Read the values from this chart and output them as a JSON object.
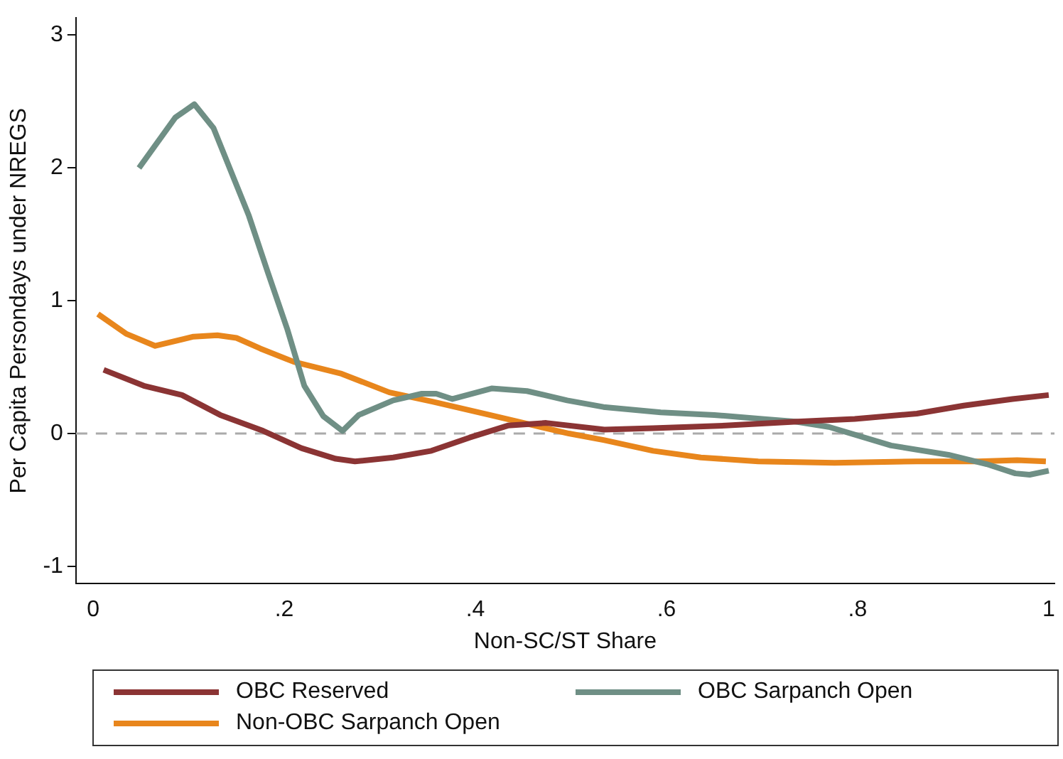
{
  "chart_data": {
    "type": "line",
    "xlabel": "Non-SC/ST Share",
    "ylabel": "Per Capita Persondays under NREGS",
    "xlim": [
      -0.018,
      1.006
    ],
    "ylim": [
      -1.13,
      3.13
    ],
    "xticks": [
      0,
      {
        "value": 0.2,
        "label": ".2"
      },
      {
        "value": 0.4,
        "label": ".4"
      },
      {
        "value": 0.6,
        "label": ".6"
      },
      {
        "value": 0.8,
        "label": ".8"
      },
      1
    ],
    "yticks": [
      -1,
      0,
      1,
      2,
      3
    ],
    "grid": false,
    "legend": "bottom",
    "marker": "none",
    "line_style": "solid",
    "ref_lines": [
      {
        "axis": "y",
        "value": 0,
        "color": "#aaaaaa",
        "line_style": "dashed"
      }
    ],
    "series": [
      {
        "name": "OBC Reserved",
        "color": "#8b3434",
        "x": [
          0.011,
          0.053,
          0.093,
          0.133,
          0.178,
          0.218,
          0.254,
          0.274,
          0.314,
          0.354,
          0.394,
          0.434,
          0.474,
          0.535,
          0.586,
          0.662,
          0.737,
          0.797,
          0.862,
          0.911,
          0.962,
          1.0
        ],
        "values": [
          0.48,
          0.36,
          0.29,
          0.14,
          0.02,
          -0.11,
          -0.19,
          -0.21,
          -0.18,
          -0.13,
          -0.03,
          0.06,
          0.08,
          0.03,
          0.04,
          0.06,
          0.09,
          0.11,
          0.15,
          0.21,
          0.26,
          0.29
        ]
      },
      {
        "name": "OBC Sarpanch Open",
        "color": "#6f8f85",
        "x": [
          0.048,
          0.086,
          0.106,
          0.126,
          0.163,
          0.183,
          0.203,
          0.221,
          0.241,
          0.261,
          0.278,
          0.314,
          0.344,
          0.359,
          0.376,
          0.417,
          0.454,
          0.496,
          0.534,
          0.594,
          0.65,
          0.7,
          0.735,
          0.77,
          0.835,
          0.895,
          0.935,
          0.965,
          0.98,
          1.0
        ],
        "values": [
          2.0,
          2.38,
          2.48,
          2.3,
          1.64,
          1.21,
          0.79,
          0.36,
          0.13,
          0.02,
          0.14,
          0.25,
          0.3,
          0.3,
          0.26,
          0.34,
          0.32,
          0.25,
          0.2,
          0.16,
          0.14,
          0.11,
          0.09,
          0.05,
          -0.09,
          -0.16,
          -0.23,
          -0.3,
          -0.31,
          -0.28
        ]
      },
      {
        "name": "Non-OBC Sarpanch Open",
        "color": "#e8861c",
        "x": [
          0.005,
          0.035,
          0.065,
          0.105,
          0.13,
          0.15,
          0.175,
          0.21,
          0.26,
          0.31,
          0.355,
          0.415,
          0.456,
          0.498,
          0.535,
          0.586,
          0.636,
          0.696,
          0.776,
          0.862,
          0.926,
          0.967,
          0.997
        ],
        "values": [
          0.9,
          0.75,
          0.66,
          0.73,
          0.74,
          0.72,
          0.64,
          0.54,
          0.45,
          0.31,
          0.24,
          0.14,
          0.07,
          0.0,
          -0.05,
          -0.13,
          -0.18,
          -0.21,
          -0.22,
          -0.21,
          -0.21,
          -0.2,
          -0.21
        ]
      }
    ]
  }
}
